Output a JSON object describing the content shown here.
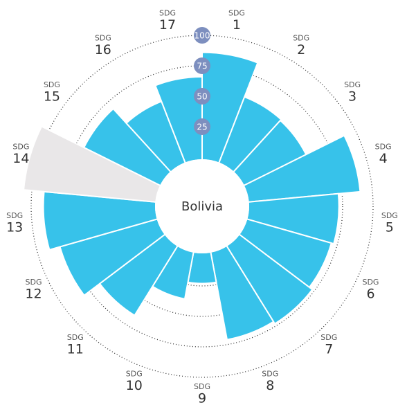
{
  "chart_data": {
    "type": "radial_bar",
    "title": "Bolivia",
    "label_prefix": "SDG",
    "categories": [
      "1",
      "2",
      "3",
      "4",
      "5",
      "6",
      "7",
      "8",
      "9",
      "10",
      "11",
      "12",
      "13",
      "14",
      "15",
      "16",
      "17"
    ],
    "values": [
      86,
      56,
      55,
      90,
      72,
      70,
      73,
      71,
      23,
      37,
      65,
      81,
      90,
      null,
      68,
      52,
      66
    ],
    "color": "#37c2ea",
    "missing_color": "#e9e7e8",
    "ylim": [
      0,
      100
    ],
    "yticks": [
      25,
      50,
      75,
      100
    ],
    "grid": true
  }
}
